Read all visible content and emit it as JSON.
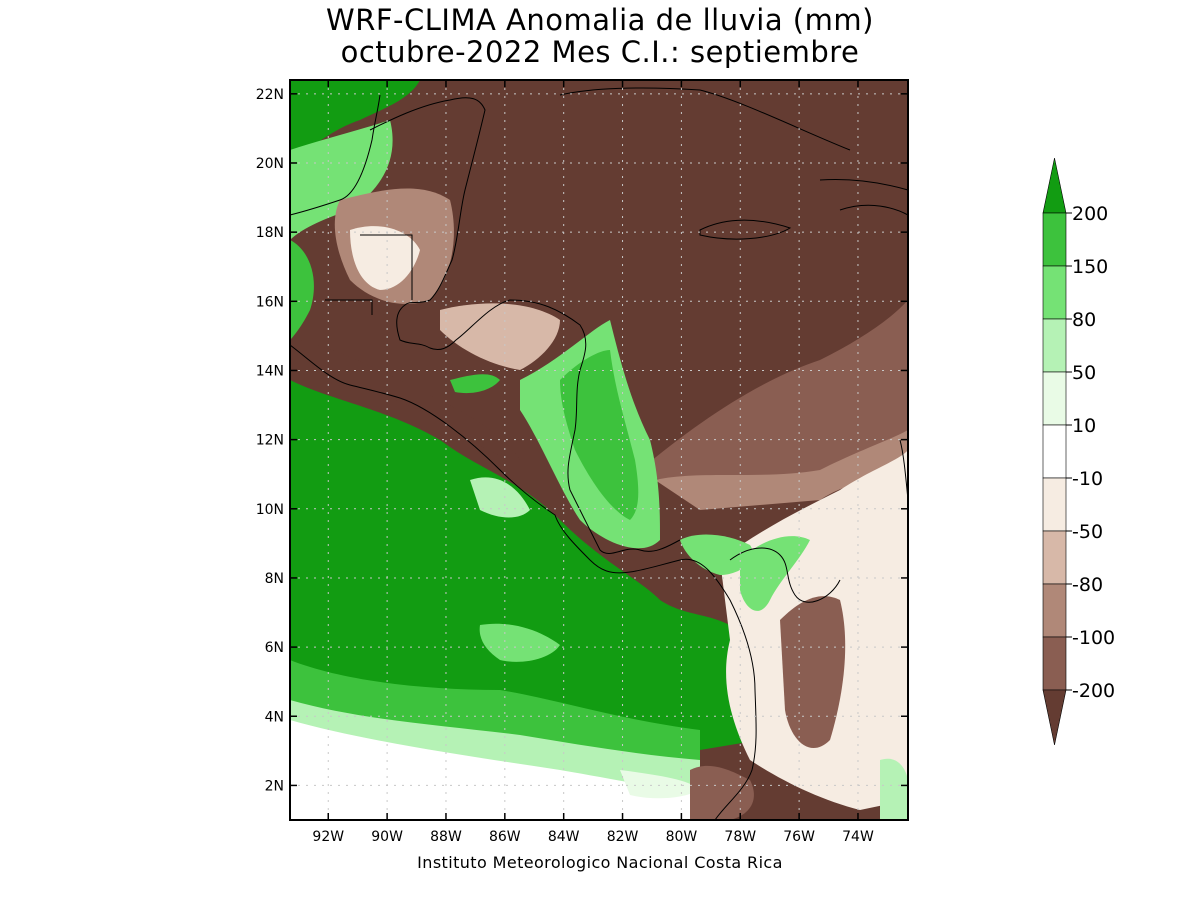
{
  "title": {
    "line1": "WRF-CLIMA Anomalia de lluvia (mm)",
    "line2": "octubre-2022 Mes C.I.: septiembre"
  },
  "credit": "Instituto Meteorologico Nacional Costa Rica",
  "map": {
    "lon_range": [
      -93.3,
      -72.3
    ],
    "lat_range": [
      1.0,
      22.4
    ],
    "x_ticks": [
      {
        "lon": -92,
        "label": "92W"
      },
      {
        "lon": -90,
        "label": "90W"
      },
      {
        "lon": -88,
        "label": "88W"
      },
      {
        "lon": -86,
        "label": "86W"
      },
      {
        "lon": -84,
        "label": "84W"
      },
      {
        "lon": -82,
        "label": "82W"
      },
      {
        "lon": -80,
        "label": "80W"
      },
      {
        "lon": -78,
        "label": "78W"
      },
      {
        "lon": -76,
        "label": "76W"
      },
      {
        "lon": -74,
        "label": "74W"
      }
    ],
    "y_ticks": [
      {
        "lat": 2,
        "label": "2N"
      },
      {
        "lat": 4,
        "label": "4N"
      },
      {
        "lat": 6,
        "label": "6N"
      },
      {
        "lat": 8,
        "label": "8N"
      },
      {
        "lat": 10,
        "label": "10N"
      },
      {
        "lat": 12,
        "label": "12N"
      },
      {
        "lat": 14,
        "label": "14N"
      },
      {
        "lat": 16,
        "label": "16N"
      },
      {
        "lat": 18,
        "label": "18N"
      },
      {
        "lat": 20,
        "label": "20N"
      },
      {
        "lat": 22,
        "label": "22N"
      }
    ],
    "grid": "dotted"
  },
  "colorbar": {
    "labels": [
      "200",
      "150",
      "80",
      "50",
      "10",
      "-10",
      "-50",
      "-80",
      "-100",
      "-200"
    ],
    "colors": [
      "#129c12",
      "#3dc23d",
      "#75e275",
      "#b5f2b5",
      "#e9fbe6",
      "#ffffff",
      "#f6ece2",
      "#d7b8a8",
      "#b08878",
      "#8a5e52",
      "#643c32"
    ]
  }
}
